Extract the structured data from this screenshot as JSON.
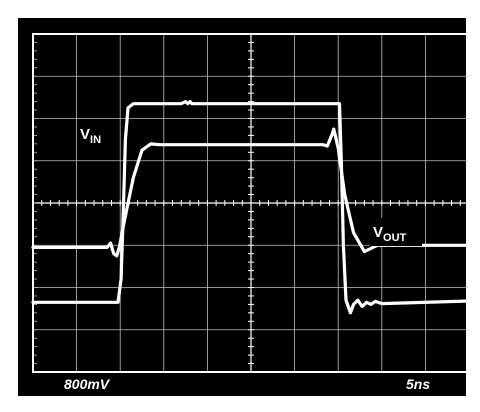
{
  "chart_data": {
    "type": "line",
    "title": "",
    "xlabel": "",
    "ylabel": "",
    "grid": true,
    "divisions": {
      "x": 10,
      "y": 8
    },
    "scale": {
      "vertical": "800mV",
      "horizontal": "5ns"
    },
    "xlim": [
      0,
      10
    ],
    "ylim": [
      -4,
      4
    ],
    "series": [
      {
        "name": "VIN",
        "label_main": "V",
        "label_sub": "IN",
        "color": "#ffffff",
        "points": [
          [
            0,
            -2.35
          ],
          [
            1.95,
            -2.35
          ],
          [
            2.02,
            -1.8
          ],
          [
            2.07,
            -0.2
          ],
          [
            2.12,
            1.5
          ],
          [
            2.18,
            2.25
          ],
          [
            2.3,
            2.35
          ],
          [
            3.4,
            2.35
          ],
          [
            3.5,
            2.4
          ],
          [
            3.55,
            2.35
          ],
          [
            3.6,
            2.4
          ],
          [
            3.65,
            2.35
          ],
          [
            7.03,
            2.35
          ],
          [
            7.07,
            1.0
          ],
          [
            7.12,
            -1.0
          ],
          [
            7.18,
            -2.3
          ],
          [
            7.28,
            -2.6
          ],
          [
            7.35,
            -2.4
          ],
          [
            7.45,
            -2.3
          ],
          [
            7.55,
            -2.45
          ],
          [
            7.65,
            -2.35
          ],
          [
            7.75,
            -2.4
          ],
          [
            7.85,
            -2.33
          ],
          [
            8.0,
            -2.38
          ],
          [
            10,
            -2.32
          ]
        ]
      },
      {
        "name": "VOUT",
        "label_main": "V",
        "label_sub": "OUT",
        "color": "#ffffff",
        "points": [
          [
            0,
            -1.05
          ],
          [
            1.7,
            -1.05
          ],
          [
            1.78,
            -0.95
          ],
          [
            1.85,
            -1.2
          ],
          [
            1.92,
            -1.25
          ],
          [
            1.98,
            -1.05
          ],
          [
            2.1,
            -0.4
          ],
          [
            2.3,
            0.6
          ],
          [
            2.5,
            1.25
          ],
          [
            2.7,
            1.4
          ],
          [
            2.9,
            1.38
          ],
          [
            6.65,
            1.38
          ],
          [
            6.75,
            1.35
          ],
          [
            6.85,
            1.6
          ],
          [
            6.9,
            1.75
          ],
          [
            7.0,
            1.3
          ],
          [
            7.15,
            0.2
          ],
          [
            7.35,
            -0.7
          ],
          [
            7.6,
            -1.15
          ],
          [
            7.9,
            -1.0
          ],
          [
            10,
            -1.0
          ]
        ]
      }
    ]
  }
}
